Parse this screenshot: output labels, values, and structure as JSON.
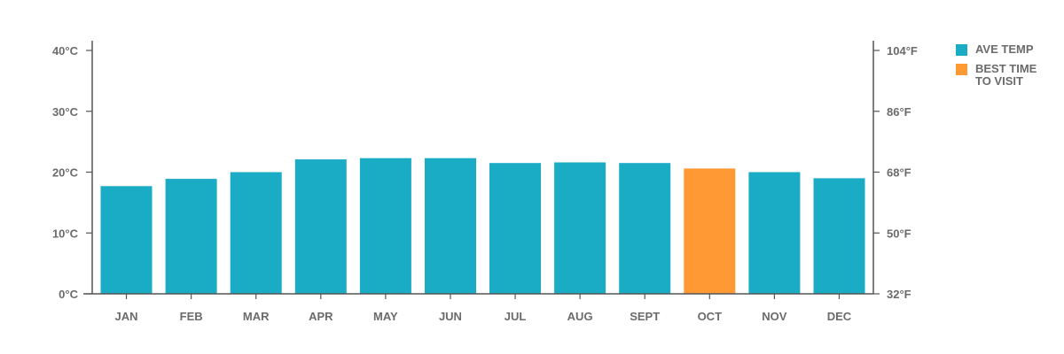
{
  "chart_data": {
    "type": "bar",
    "categories": [
      "JAN",
      "FEB",
      "MAR",
      "APR",
      "MAY",
      "JUN",
      "JUL",
      "AUG",
      "SEPT",
      "OCT",
      "NOV",
      "DEC"
    ],
    "series": [
      {
        "name": "AVE TEMP",
        "values": [
          17.7,
          18.9,
          20.0,
          22.1,
          22.3,
          22.3,
          21.5,
          21.6,
          21.5,
          20.6,
          20.0,
          19.0
        ]
      }
    ],
    "highlight_index": 9,
    "ylim": [
      0,
      40
    ],
    "y_ticks": [
      "0°C",
      "10°C",
      "20°C",
      "30°C",
      "40°C"
    ],
    "y2_ticks": [
      "32°F",
      "50°F",
      "68°F",
      "86°F",
      "104°F"
    ],
    "grid": false,
    "legend_position": "right"
  },
  "colors": {
    "bar": "#1aabc5",
    "highlight": "#ff9933",
    "axis": "#555555",
    "text": "#6b6b6b"
  },
  "legend": [
    {
      "label": "AVE TEMP",
      "color": "#1aabc5"
    },
    {
      "label": "BEST TIME TO VISIT",
      "color": "#ff9933"
    }
  ]
}
